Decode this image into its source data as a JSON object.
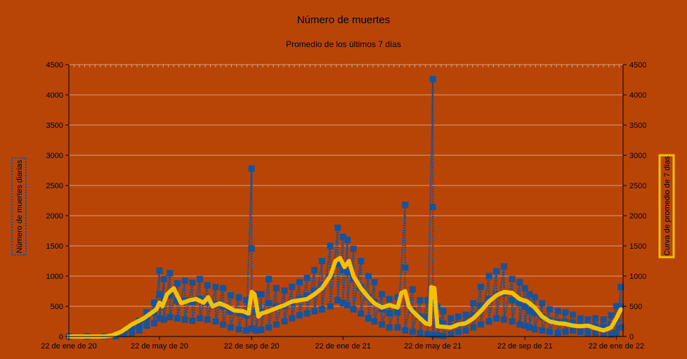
{
  "chart_data": {
    "type": "line",
    "title": "Número de  muertes",
    "subtitle": "Promedio de los últimos 7 días",
    "ylabel_left": "Número de muertes diarias",
    "ylabel_right": "Curva de promedio de 7 días",
    "ylim": [
      0,
      4500
    ],
    "ylim_right": [
      0,
      4500
    ],
    "yticks": [
      "0",
      "500",
      "1000",
      "1500",
      "2000",
      "2500",
      "3000",
      "3500",
      "4000",
      "4500"
    ],
    "xlim": [
      "2020-01-22",
      "2022-01-31"
    ],
    "xticks": [
      {
        "date": "2020-01-22",
        "label": "22 de ene de 20"
      },
      {
        "date": "2020-05-22",
        "label": "22 de may de 20"
      },
      {
        "date": "2020-09-22",
        "label": "22 de sep de 20"
      },
      {
        "date": "2021-01-22",
        "label": "22 de ene de 21"
      },
      {
        "date": "2021-05-22",
        "label": "22 de may de 21"
      },
      {
        "date": "2021-09-22",
        "label": "22 de sep de 21"
      },
      {
        "date": "2022-01-22",
        "label": "22 de ene de 22"
      }
    ],
    "grid": true,
    "colors": {
      "daily": "#17539b",
      "average": "#f5c000",
      "background": "#b84405",
      "grid": "#d9a080"
    },
    "series": [
      {
        "axis": "left",
        "style": "dotted-markers",
        "dates": [
          "2020-01-22",
          "2020-02-15",
          "2020-03-10",
          "2020-03-25",
          "2020-04-05",
          "2020-04-15",
          "2020-04-25",
          "2020-05-05",
          "2020-05-15",
          "2020-05-22",
          "2020-05-28",
          "2020-06-05",
          "2020-06-15",
          "2020-06-25",
          "2020-07-05",
          "2020-07-15",
          "2020-07-25",
          "2020-08-05",
          "2020-08-15",
          "2020-08-25",
          "2020-09-05",
          "2020-09-15",
          "2020-09-22",
          "2020-09-28",
          "2020-10-05",
          "2020-10-15",
          "2020-10-25",
          "2020-11-05",
          "2020-11-15",
          "2020-11-25",
          "2020-12-05",
          "2020-12-15",
          "2020-12-25",
          "2021-01-05",
          "2021-01-15",
          "2021-01-22",
          "2021-01-28",
          "2021-02-05",
          "2021-02-15",
          "2021-02-25",
          "2021-03-05",
          "2021-03-15",
          "2021-03-25",
          "2021-04-05",
          "2021-04-15",
          "2021-04-25",
          "2021-05-05",
          "2021-05-15",
          "2021-05-22",
          "2021-05-28",
          "2021-06-05",
          "2021-06-15",
          "2021-06-25",
          "2021-07-05",
          "2021-07-15",
          "2021-07-25",
          "2021-08-05",
          "2021-08-15",
          "2021-08-25",
          "2021-09-05",
          "2021-09-15",
          "2021-09-22",
          "2021-09-28",
          "2021-10-05",
          "2021-10-15",
          "2021-10-25",
          "2021-11-05",
          "2021-11-15",
          "2021-11-25",
          "2021-12-05",
          "2021-12-15",
          "2021-12-25",
          "2022-01-05",
          "2022-01-15",
          "2022-01-22",
          "2022-01-28"
        ],
        "hi": [
          0,
          0,
          0,
          5,
          40,
          150,
          260,
          400,
          560,
          1090,
          950,
          1050,
          880,
          920,
          890,
          950,
          850,
          820,
          800,
          680,
          650,
          600,
          2780,
          700,
          700,
          950,
          800,
          760,
          820,
          900,
          970,
          1100,
          1250,
          1500,
          1800,
          1650,
          1600,
          1450,
          1250,
          1000,
          900,
          700,
          620,
          650,
          2180,
          780,
          600,
          600,
          4260,
          500,
          420,
          300,
          330,
          360,
          550,
          820,
          1000,
          1080,
          1160,
          950,
          900,
          800,
          700,
          650,
          550,
          450,
          420,
          400,
          360,
          300,
          280,
          300,
          280,
          350,
          500,
          820
        ],
        "lo": [
          0,
          0,
          0,
          0,
          10,
          50,
          100,
          180,
          220,
          300,
          280,
          320,
          300,
          280,
          260,
          300,
          280,
          250,
          200,
          150,
          120,
          100,
          130,
          100,
          110,
          150,
          200,
          250,
          300,
          350,
          380,
          420,
          450,
          500,
          600,
          550,
          520,
          450,
          380,
          300,
          250,
          200,
          150,
          150,
          100,
          80,
          60,
          40,
          30,
          20,
          10,
          40,
          80,
          100,
          150,
          200,
          250,
          300,
          280,
          250,
          200,
          180,
          150,
          120,
          100,
          80,
          60,
          80,
          100,
          80,
          60,
          50,
          40,
          30,
          60,
          150
        ]
      },
      {
        "axis": "right",
        "style": "line",
        "dates": [
          "2020-01-22",
          "2020-02-15",
          "2020-03-10",
          "2020-03-20",
          "2020-04-01",
          "2020-04-15",
          "2020-05-01",
          "2020-05-10",
          "2020-05-18",
          "2020-05-22",
          "2020-05-26",
          "2020-06-01",
          "2020-06-10",
          "2020-06-20",
          "2020-07-01",
          "2020-07-10",
          "2020-07-20",
          "2020-07-26",
          "2020-08-01",
          "2020-08-10",
          "2020-08-20",
          "2020-08-30",
          "2020-09-10",
          "2020-09-18",
          "2020-09-22",
          "2020-09-26",
          "2020-10-01",
          "2020-10-05",
          "2020-10-15",
          "2020-10-25",
          "2020-11-05",
          "2020-11-15",
          "2020-11-25",
          "2020-12-05",
          "2020-12-15",
          "2020-12-25",
          "2021-01-05",
          "2021-01-12",
          "2021-01-18",
          "2021-01-24",
          "2021-01-30",
          "2021-02-05",
          "2021-02-15",
          "2021-02-25",
          "2021-03-05",
          "2021-03-15",
          "2021-03-25",
          "2021-04-05",
          "2021-04-10",
          "2021-04-15",
          "2021-04-20",
          "2021-04-25",
          "2021-05-05",
          "2021-05-12",
          "2021-05-18",
          "2021-05-20",
          "2021-05-24",
          "2021-05-28",
          "2021-06-05",
          "2021-06-15",
          "2021-06-25",
          "2021-07-05",
          "2021-07-15",
          "2021-07-25",
          "2021-08-05",
          "2021-08-15",
          "2021-08-25",
          "2021-09-05",
          "2021-09-15",
          "2021-09-25",
          "2021-10-05",
          "2021-10-15",
          "2021-10-25",
          "2021-11-05",
          "2021-11-15",
          "2021-11-25",
          "2021-12-05",
          "2021-12-15",
          "2021-12-25",
          "2022-01-05",
          "2022-01-15",
          "2022-01-22",
          "2022-01-28"
        ],
        "values": [
          0,
          0,
          0,
          20,
          80,
          200,
          300,
          380,
          450,
          560,
          500,
          700,
          800,
          550,
          600,
          620,
          560,
          650,
          500,
          550,
          500,
          430,
          420,
          380,
          740,
          700,
          330,
          380,
          420,
          470,
          520,
          580,
          600,
          620,
          700,
          800,
          1000,
          1250,
          1300,
          1150,
          1250,
          1000,
          800,
          650,
          550,
          480,
          520,
          480,
          720,
          750,
          500,
          420,
          300,
          220,
          200,
          820,
          800,
          170,
          160,
          150,
          200,
          220,
          300,
          420,
          580,
          680,
          740,
          720,
          620,
          580,
          480,
          330,
          250,
          220,
          210,
          180,
          170,
          180,
          140,
          100,
          150,
          300,
          450
        ]
      }
    ]
  }
}
